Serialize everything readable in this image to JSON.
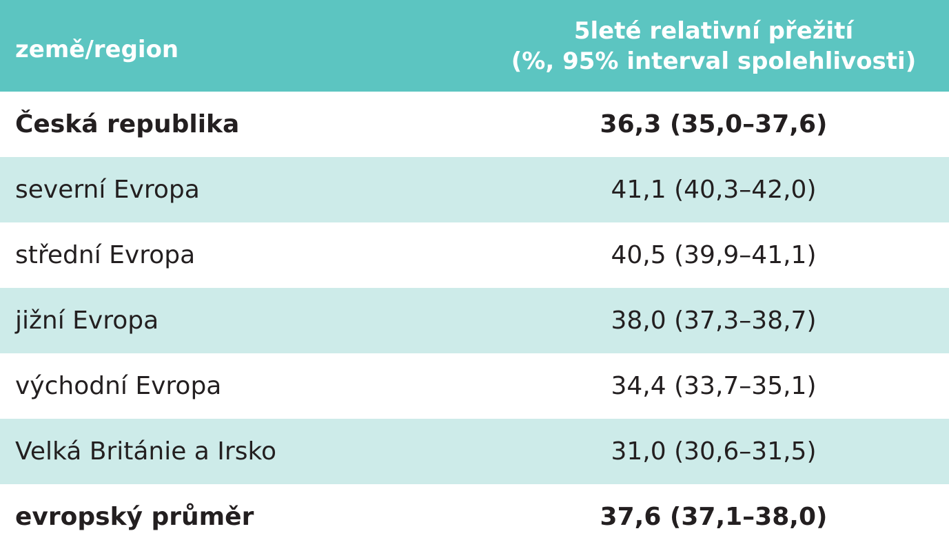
{
  "table": {
    "header": [
      "země/region",
      [
        "5leté relativní přežití",
        "(%, 95% interval spolehlivosti)"
      ]
    ],
    "rows": [
      [
        "Česká republika",
        "36,3 (35,0–37,6)"
      ],
      [
        "severní Evropa",
        "41,1 (40,3–42,0)"
      ],
      [
        "střední Evropa",
        "40,5 (39,9–41,1)"
      ],
      [
        "jižní Evropa",
        "38,0 (37,3–38,7)"
      ],
      [
        "východní Evropa",
        "34,4 (33,7–35,1)"
      ],
      [
        "Velká Británie a Irsko",
        "31,0 (30,6–31,5)"
      ],
      [
        "evropský průměr",
        "37,6 (37,1–38,0)"
      ]
    ]
  }
}
